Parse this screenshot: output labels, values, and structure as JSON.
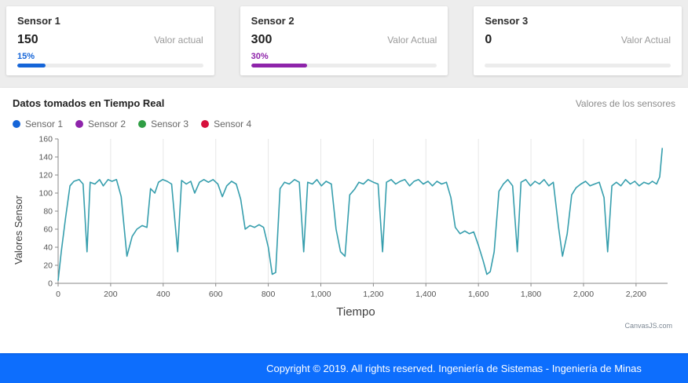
{
  "cards": [
    {
      "title": "Sensor 1",
      "value": "150",
      "value_label": "Valor actual",
      "percent_label": "15%",
      "percent": 15,
      "color": "#1565d8"
    },
    {
      "title": "Sensor 2",
      "value": "300",
      "value_label": "Valor Actual",
      "percent_label": "30%",
      "percent": 30,
      "color": "#8e24aa"
    },
    {
      "title": "Sensor 3",
      "value": "0",
      "value_label": "Valor Actual",
      "percent_label": "",
      "percent": 0,
      "color": "#1565d8"
    }
  ],
  "panel": {
    "title": "Datos tomados en Tiempo Real",
    "subtitle": "Valores de los sensores",
    "legend": [
      {
        "label": "Sensor 1",
        "color": "#1565d8"
      },
      {
        "label": "Sensor 2",
        "color": "#8e24aa"
      },
      {
        "label": "Sensor 3",
        "color": "#2f9e44"
      },
      {
        "label": "Sensor 4",
        "color": "#d6103c"
      }
    ],
    "watermark": "CanvasJS.com"
  },
  "chart_data": {
    "type": "line",
    "title": "Datos tomados en Tiempo Real",
    "xlabel": "Tiempo",
    "ylabel": "Valores Sensor",
    "xlim": [
      0,
      2320
    ],
    "ylim": [
      0,
      160
    ],
    "x_ticks": [
      0,
      200,
      400,
      600,
      800,
      1000,
      1200,
      1400,
      1600,
      1800,
      2000,
      2200
    ],
    "y_ticks": [
      0,
      20,
      40,
      60,
      80,
      100,
      120,
      140,
      160
    ],
    "grid": "vertical",
    "legend_position": "top-left",
    "line_color": "#369ead",
    "series": [
      {
        "name": "Sensor 1",
        "points": [
          [
            0,
            3
          ],
          [
            12,
            35
          ],
          [
            28,
            72
          ],
          [
            45,
            108
          ],
          [
            60,
            113
          ],
          [
            80,
            115
          ],
          [
            95,
            110
          ],
          [
            110,
            35
          ],
          [
            122,
            112
          ],
          [
            140,
            110
          ],
          [
            158,
            115
          ],
          [
            172,
            108
          ],
          [
            190,
            115
          ],
          [
            205,
            113
          ],
          [
            222,
            115
          ],
          [
            240,
            96
          ],
          [
            262,
            30
          ],
          [
            282,
            52
          ],
          [
            300,
            60
          ],
          [
            320,
            64
          ],
          [
            338,
            62
          ],
          [
            352,
            105
          ],
          [
            368,
            100
          ],
          [
            382,
            112
          ],
          [
            398,
            115
          ],
          [
            415,
            113
          ],
          [
            432,
            110
          ],
          [
            455,
            35
          ],
          [
            470,
            114
          ],
          [
            488,
            110
          ],
          [
            505,
            113
          ],
          [
            520,
            100
          ],
          [
            538,
            112
          ],
          [
            555,
            115
          ],
          [
            572,
            112
          ],
          [
            590,
            115
          ],
          [
            608,
            110
          ],
          [
            625,
            96
          ],
          [
            642,
            108
          ],
          [
            660,
            113
          ],
          [
            678,
            110
          ],
          [
            695,
            93
          ],
          [
            712,
            60
          ],
          [
            730,
            64
          ],
          [
            748,
            62
          ],
          [
            765,
            65
          ],
          [
            782,
            62
          ],
          [
            800,
            40
          ],
          [
            815,
            10
          ],
          [
            828,
            12
          ],
          [
            845,
            105
          ],
          [
            862,
            112
          ],
          [
            880,
            110
          ],
          [
            900,
            115
          ],
          [
            918,
            112
          ],
          [
            935,
            35
          ],
          [
            950,
            112
          ],
          [
            968,
            110
          ],
          [
            985,
            115
          ],
          [
            1002,
            108
          ],
          [
            1020,
            113
          ],
          [
            1040,
            110
          ],
          [
            1058,
            60
          ],
          [
            1075,
            35
          ],
          [
            1092,
            30
          ],
          [
            1110,
            98
          ],
          [
            1128,
            104
          ],
          [
            1145,
            112
          ],
          [
            1162,
            110
          ],
          [
            1180,
            115
          ],
          [
            1200,
            112
          ],
          [
            1218,
            110
          ],
          [
            1235,
            35
          ],
          [
            1250,
            112
          ],
          [
            1268,
            115
          ],
          [
            1285,
            110
          ],
          [
            1302,
            113
          ],
          [
            1320,
            115
          ],
          [
            1338,
            108
          ],
          [
            1355,
            113
          ],
          [
            1372,
            115
          ],
          [
            1390,
            110
          ],
          [
            1408,
            113
          ],
          [
            1425,
            108
          ],
          [
            1442,
            113
          ],
          [
            1460,
            110
          ],
          [
            1478,
            112
          ],
          [
            1495,
            95
          ],
          [
            1512,
            62
          ],
          [
            1530,
            55
          ],
          [
            1548,
            58
          ],
          [
            1565,
            55
          ],
          [
            1582,
            57
          ],
          [
            1600,
            42
          ],
          [
            1618,
            25
          ],
          [
            1632,
            10
          ],
          [
            1645,
            13
          ],
          [
            1660,
            35
          ],
          [
            1678,
            102
          ],
          [
            1695,
            110
          ],
          [
            1712,
            115
          ],
          [
            1730,
            108
          ],
          [
            1748,
            35
          ],
          [
            1762,
            112
          ],
          [
            1780,
            115
          ],
          [
            1798,
            108
          ],
          [
            1815,
            113
          ],
          [
            1832,
            110
          ],
          [
            1850,
            115
          ],
          [
            1868,
            108
          ],
          [
            1885,
            112
          ],
          [
            1905,
            62
          ],
          [
            1920,
            30
          ],
          [
            1938,
            55
          ],
          [
            1955,
            98
          ],
          [
            1972,
            106
          ],
          [
            1990,
            110
          ],
          [
            2008,
            113
          ],
          [
            2025,
            108
          ],
          [
            2042,
            110
          ],
          [
            2060,
            112
          ],
          [
            2078,
            95
          ],
          [
            2092,
            35
          ],
          [
            2108,
            108
          ],
          [
            2125,
            112
          ],
          [
            2142,
            108
          ],
          [
            2160,
            115
          ],
          [
            2178,
            110
          ],
          [
            2195,
            113
          ],
          [
            2212,
            108
          ],
          [
            2230,
            112
          ],
          [
            2248,
            110
          ],
          [
            2262,
            113
          ],
          [
            2278,
            110
          ],
          [
            2290,
            118
          ],
          [
            2300,
            150
          ]
        ]
      }
    ]
  },
  "footer": {
    "text": "Copyright © 2019. All rights reserved. Ingeniería de Sistemas - Ingeniería de Minas"
  }
}
